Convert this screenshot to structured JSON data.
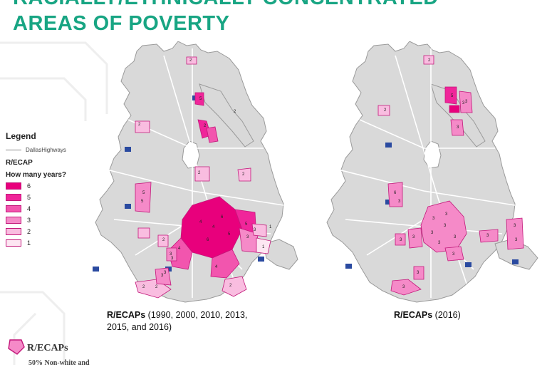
{
  "title": {
    "line1": "RACIALLY/ETHNICALLY CONCENTRATED",
    "line2": "AREAS OF POVERTY"
  },
  "legend": {
    "title": "Legend",
    "highways_label": "DallasHighways",
    "recap_label": "R/ECAP",
    "question": "How many years?",
    "classes": [
      {
        "label": "6",
        "color": "#e8007c"
      },
      {
        "label": "5",
        "color": "#f0259a"
      },
      {
        "label": "4",
        "color": "#f255ae"
      },
      {
        "label": "3",
        "color": "#f58ac8"
      },
      {
        "label": "2",
        "color": "#f9bde0"
      },
      {
        "label": "1",
        "color": "#fde6f2"
      }
    ]
  },
  "maps": {
    "left": {
      "caption_bold": "R/ECAPs",
      "caption_rest_line1": " (1990, 2000, 2010, 2013,",
      "caption_line2": "2015, and 2016)",
      "tract_labels": [
        "2",
        "2",
        "2",
        "5",
        "5",
        "4",
        "4",
        "6",
        "5",
        "5",
        "4",
        "4",
        "6",
        "3",
        "3",
        "2",
        "2",
        "2",
        "2",
        "3",
        "2",
        "1",
        "3",
        "3",
        "2",
        "1",
        "2",
        "3",
        "5"
      ]
    },
    "right": {
      "caption_bold": "R/ECAPs",
      "caption_rest": " (2016)",
      "tract_labels": [
        "2",
        "2",
        "3",
        "5",
        "6",
        "3",
        "3",
        "3",
        "3",
        "3",
        "3",
        "3",
        "3",
        "3",
        "3",
        "3",
        "3",
        "3",
        "3",
        "3",
        "3",
        "3"
      ]
    }
  },
  "bottom_legend": {
    "recaps_label": "R/ECAPs",
    "subtitle": "50% Non-white and"
  },
  "colors": {
    "title": "#18a583",
    "city_fill": "#d9d9d9",
    "recap_stroke": "#c2187a",
    "highway_shield": "#2a4aa0"
  }
}
